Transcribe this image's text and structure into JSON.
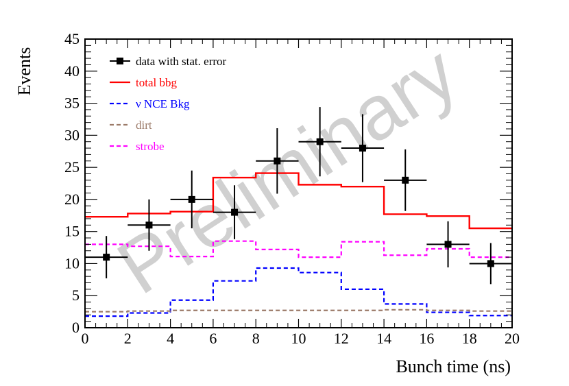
{
  "chart_data": {
    "type": "line",
    "title": "",
    "xlabel": "Bunch time (ns)",
    "ylabel": "Events",
    "xlim": [
      0,
      20
    ],
    "ylim": [
      0,
      45
    ],
    "x_ticks": [
      0,
      2,
      4,
      6,
      8,
      10,
      12,
      14,
      16,
      18,
      20
    ],
    "y_ticks": [
      0,
      5,
      10,
      15,
      20,
      25,
      30,
      35,
      40,
      45
    ],
    "grid": false,
    "legend_position": "top-left",
    "watermark": "Preliminary",
    "bin_edges": [
      0,
      2,
      4,
      6,
      8,
      10,
      12,
      14,
      16,
      18,
      20
    ],
    "series": [
      {
        "name": "data with stat. error",
        "kind": "points",
        "color": "#000000",
        "x": [
          1,
          3,
          5,
          7,
          9,
          11,
          13,
          15,
          17,
          19
        ],
        "y": [
          11,
          16,
          20,
          18,
          26,
          29,
          28,
          23,
          13,
          10
        ],
        "xerr": 1,
        "yerr": [
          3.3,
          4,
          4.5,
          4.2,
          5.1,
          5.4,
          5.3,
          4.8,
          3.6,
          3.2
        ]
      },
      {
        "name": "total bbg",
        "kind": "step",
        "style": "solid",
        "color": "#ff0000",
        "values": [
          17.3,
          17.8,
          18.1,
          23.4,
          24.1,
          22.3,
          22,
          17.7,
          17.4,
          15.5
        ]
      },
      {
        "name": "ν NCE Bkg",
        "kind": "step",
        "style": "dashed",
        "color": "#0000ff",
        "values": [
          1.8,
          2.3,
          4.3,
          7.3,
          9.3,
          8.6,
          6,
          3.7,
          2.4,
          1.9
        ]
      },
      {
        "name": "dirt",
        "kind": "step",
        "style": "dashed",
        "color": "#9b7a68",
        "values": [
          2.5,
          2.6,
          2.7,
          2.7,
          2.7,
          2.7,
          2.7,
          2.8,
          2.7,
          2.6
        ]
      },
      {
        "name": "strobe",
        "kind": "step",
        "style": "dashed",
        "color": "#ff00ff",
        "values": [
          13,
          12.7,
          11.1,
          13.5,
          12.2,
          11,
          13.4,
          11.3,
          12.3,
          11
        ]
      }
    ]
  }
}
